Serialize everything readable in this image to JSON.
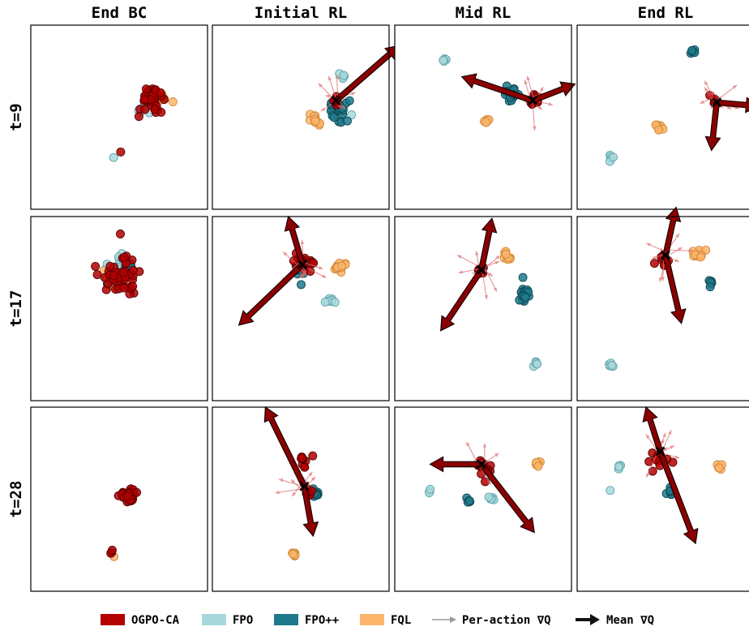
{
  "chart_data": {
    "type": "scatter",
    "columns": [
      "End BC",
      "Initial RL",
      "Mid RL",
      "End RL"
    ],
    "rows": [
      "t=9",
      "t=17",
      "t=28"
    ],
    "legend": {
      "position": "bottom",
      "entries": [
        {
          "label": "OGPO-CA",
          "kind": "patch",
          "color": "#b30000"
        },
        {
          "label": "FPO",
          "kind": "patch",
          "color": "#a8d8dc"
        },
        {
          "label": "FPO++",
          "kind": "patch",
          "color": "#1f7a8c"
        },
        {
          "label": "FQL",
          "kind": "patch",
          "color": "#fdb56b"
        },
        {
          "label": "Per-action ∇Q",
          "kind": "thin-arrow",
          "color": "#999999"
        },
        {
          "label": "Mean ∇Q",
          "kind": "thick-arrow",
          "color": "#111111"
        }
      ]
    },
    "colors": {
      "OGPO-CA": "#b30000",
      "FPO": "#a8d8dc",
      "FPO++": "#1f7a8c",
      "FQL": "#fdb56b",
      "arrow_fill": "#8b0000",
      "per_action_arrow": "#e07070"
    },
    "axes": {
      "xlim": [
        0,
        1
      ],
      "ylim": [
        0,
        1
      ],
      "ticks": false,
      "grid": false
    },
    "panels": [
      {
        "row": 0,
        "col": 0,
        "clusters": [
          {
            "method": "OGPO-CA",
            "x": 0.68,
            "y": 0.4,
            "spread": 0.06,
            "n": 45
          },
          {
            "method": "FPO",
            "x": 0.65,
            "y": 0.46,
            "spread": 0.05,
            "n": 10
          },
          {
            "method": "FQL",
            "x": 0.74,
            "y": 0.41,
            "spread": 0.03,
            "n": 6
          },
          {
            "method": "FPO",
            "x": 0.47,
            "y": 0.72,
            "spread": 0.005,
            "n": 1
          },
          {
            "method": "OGPO-CA",
            "x": 0.51,
            "y": 0.68,
            "spread": 0.005,
            "n": 1
          }
        ]
      },
      {
        "row": 0,
        "col": 1,
        "clusters": [
          {
            "method": "FPO++",
            "x": 0.7,
            "y": 0.46,
            "spread": 0.06,
            "n": 25
          },
          {
            "method": "FPO",
            "x": 0.72,
            "y": 0.45,
            "spread": 0.05,
            "n": 10
          },
          {
            "method": "FPO",
            "x": 0.74,
            "y": 0.28,
            "spread": 0.02,
            "n": 5
          },
          {
            "method": "FQL",
            "x": 0.58,
            "y": 0.51,
            "spread": 0.04,
            "n": 10
          },
          {
            "method": "OGPO-CA",
            "x": 0.7,
            "y": 0.41,
            "spread": 0.025,
            "n": 10
          }
        ],
        "mean": {
          "x": 0.7,
          "y": 0.41
        },
        "arrows": [
          {
            "dx": 0.36,
            "dy": -0.3
          }
        ],
        "per_action": true
      },
      {
        "row": 0,
        "col": 2,
        "clusters": [
          {
            "method": "FPO",
            "x": 0.28,
            "y": 0.19,
            "spread": 0.015,
            "n": 5
          },
          {
            "method": "FPO++",
            "x": 0.66,
            "y": 0.38,
            "spread": 0.04,
            "n": 18
          },
          {
            "method": "OGPO-CA",
            "x": 0.79,
            "y": 0.41,
            "spread": 0.03,
            "n": 10
          },
          {
            "method": "FQL",
            "x": 0.52,
            "y": 0.52,
            "spread": 0.015,
            "n": 6
          }
        ],
        "mean": {
          "x": 0.78,
          "y": 0.41
        },
        "arrows": [
          {
            "dx": -0.4,
            "dy": -0.13
          },
          {
            "dx": 0.24,
            "dy": -0.09
          }
        ],
        "per_action": true
      },
      {
        "row": 0,
        "col": 3,
        "clusters": [
          {
            "method": "FPO++",
            "x": 0.65,
            "y": 0.15,
            "spread": 0.015,
            "n": 6
          },
          {
            "method": "OGPO-CA",
            "x": 0.78,
            "y": 0.42,
            "spread": 0.02,
            "n": 6
          },
          {
            "method": "FQL",
            "x": 0.47,
            "y": 0.55,
            "spread": 0.02,
            "n": 8
          },
          {
            "method": "FPO",
            "x": 0.19,
            "y": 0.72,
            "spread": 0.015,
            "n": 5
          }
        ],
        "mean": {
          "x": 0.79,
          "y": 0.42
        },
        "arrows": [
          {
            "dx": 0.24,
            "dy": 0.02
          },
          {
            "dx": -0.03,
            "dy": 0.26
          }
        ],
        "per_action": true
      },
      {
        "row": 1,
        "col": 0,
        "clusters": [
          {
            "method": "OGPO-CA",
            "x": 0.51,
            "y": 0.33,
            "spread": 0.1,
            "n": 45
          },
          {
            "method": "FPO",
            "x": 0.5,
            "y": 0.26,
            "spread": 0.06,
            "n": 12
          },
          {
            "method": "FQL",
            "x": 0.52,
            "y": 0.32,
            "spread": 0.08,
            "n": 12
          },
          {
            "method": "FPO++",
            "x": 0.52,
            "y": 0.3,
            "spread": 0.07,
            "n": 6
          }
        ]
      },
      {
        "row": 1,
        "col": 1,
        "clusters": [
          {
            "method": "OGPO-CA",
            "x": 0.51,
            "y": 0.25,
            "spread": 0.05,
            "n": 18
          },
          {
            "method": "FPO++",
            "x": 0.5,
            "y": 0.3,
            "spread": 0.04,
            "n": 12
          },
          {
            "method": "FPO",
            "x": 0.67,
            "y": 0.45,
            "spread": 0.025,
            "n": 7
          },
          {
            "method": "FQL",
            "x": 0.72,
            "y": 0.27,
            "spread": 0.03,
            "n": 14
          }
        ],
        "mean": {
          "x": 0.51,
          "y": 0.26
        },
        "arrows": [
          {
            "dx": -0.08,
            "dy": -0.26
          },
          {
            "dx": -0.36,
            "dy": 0.33
          }
        ],
        "per_action": true
      },
      {
        "row": 1,
        "col": 2,
        "clusters": [
          {
            "method": "OGPO-CA",
            "x": 0.49,
            "y": 0.29,
            "spread": 0.03,
            "n": 10
          },
          {
            "method": "FQL",
            "x": 0.63,
            "y": 0.22,
            "spread": 0.03,
            "n": 10
          },
          {
            "method": "FPO++",
            "x": 0.73,
            "y": 0.42,
            "spread": 0.04,
            "n": 18
          },
          {
            "method": "FPO",
            "x": 0.8,
            "y": 0.8,
            "spread": 0.015,
            "n": 5
          }
        ],
        "mean": {
          "x": 0.49,
          "y": 0.29
        },
        "arrows": [
          {
            "dx": 0.06,
            "dy": -0.28
          },
          {
            "dx": -0.23,
            "dy": 0.33
          }
        ],
        "per_action": true
      },
      {
        "row": 1,
        "col": 3,
        "clusters": [
          {
            "method": "OGPO-CA",
            "x": 0.49,
            "y": 0.24,
            "spread": 0.03,
            "n": 8
          },
          {
            "method": "FQL",
            "x": 0.69,
            "y": 0.21,
            "spread": 0.03,
            "n": 10
          },
          {
            "method": "FPO++",
            "x": 0.75,
            "y": 0.36,
            "spread": 0.02,
            "n": 6
          },
          {
            "method": "FPO",
            "x": 0.19,
            "y": 0.81,
            "spread": 0.015,
            "n": 5
          }
        ],
        "mean": {
          "x": 0.5,
          "y": 0.21
        },
        "arrows": [
          {
            "dx": 0.06,
            "dy": -0.26
          },
          {
            "dx": 0.09,
            "dy": 0.37
          }
        ],
        "per_action": true
      },
      {
        "row": 2,
        "col": 0,
        "clusters": [
          {
            "method": "OGPO-CA",
            "x": 0.55,
            "y": 0.48,
            "spread": 0.04,
            "n": 30
          },
          {
            "method": "FPO++",
            "x": 0.56,
            "y": 0.47,
            "spread": 0.03,
            "n": 8
          },
          {
            "method": "FQL",
            "x": 0.56,
            "y": 0.46,
            "spread": 0.02,
            "n": 8
          },
          {
            "method": "OGPO-CA",
            "x": 0.46,
            "y": 0.79,
            "spread": 0.01,
            "n": 3
          },
          {
            "method": "FQL",
            "x": 0.47,
            "y": 0.81,
            "spread": 0.005,
            "n": 1
          }
        ]
      },
      {
        "row": 2,
        "col": 1,
        "clusters": [
          {
            "method": "OGPO-CA",
            "x": 0.52,
            "y": 0.3,
            "spread": 0.04,
            "n": 10
          },
          {
            "method": "FPO++",
            "x": 0.58,
            "y": 0.47,
            "spread": 0.025,
            "n": 14
          },
          {
            "method": "OGPO-CA",
            "x": 0.55,
            "y": 0.47,
            "spread": 0.02,
            "n": 6
          },
          {
            "method": "FQL",
            "x": 0.46,
            "y": 0.8,
            "spread": 0.015,
            "n": 7
          }
        ],
        "mean": {
          "x": 0.52,
          "y": 0.43
        },
        "arrows": [
          {
            "dx": -0.22,
            "dy": -0.43
          },
          {
            "dx": 0.05,
            "dy": 0.27
          }
        ],
        "per_action": true
      },
      {
        "row": 2,
        "col": 2,
        "clusters": [
          {
            "method": "OGPO-CA",
            "x": 0.5,
            "y": 0.33,
            "spread": 0.05,
            "n": 14
          },
          {
            "method": "FPO",
            "x": 0.55,
            "y": 0.5,
            "spread": 0.03,
            "n": 6
          },
          {
            "method": "FPO++",
            "x": 0.42,
            "y": 0.51,
            "spread": 0.015,
            "n": 5
          },
          {
            "method": "FPO",
            "x": 0.19,
            "y": 0.46,
            "spread": 0.01,
            "n": 4
          },
          {
            "method": "FQL",
            "x": 0.81,
            "y": 0.31,
            "spread": 0.015,
            "n": 6
          }
        ],
        "mean": {
          "x": 0.49,
          "y": 0.31
        },
        "arrows": [
          {
            "dx": -0.29,
            "dy": 0.0
          },
          {
            "dx": 0.3,
            "dy": 0.37
          }
        ],
        "per_action": true
      },
      {
        "row": 2,
        "col": 3,
        "clusters": [
          {
            "method": "OGPO-CA",
            "x": 0.47,
            "y": 0.3,
            "spread": 0.05,
            "n": 10
          },
          {
            "method": "FPO++",
            "x": 0.52,
            "y": 0.46,
            "spread": 0.02,
            "n": 7
          },
          {
            "method": "FPO",
            "x": 0.24,
            "y": 0.32,
            "spread": 0.01,
            "n": 4
          },
          {
            "method": "FPO",
            "x": 0.19,
            "y": 0.45,
            "spread": 0.005,
            "n": 1
          },
          {
            "method": "FQL",
            "x": 0.81,
            "y": 0.32,
            "spread": 0.015,
            "n": 6
          }
        ],
        "mean": {
          "x": 0.47,
          "y": 0.24
        },
        "arrows": [
          {
            "dx": -0.08,
            "dy": -0.24
          },
          {
            "dx": 0.2,
            "dy": 0.5
          }
        ],
        "per_action": true
      }
    ]
  }
}
